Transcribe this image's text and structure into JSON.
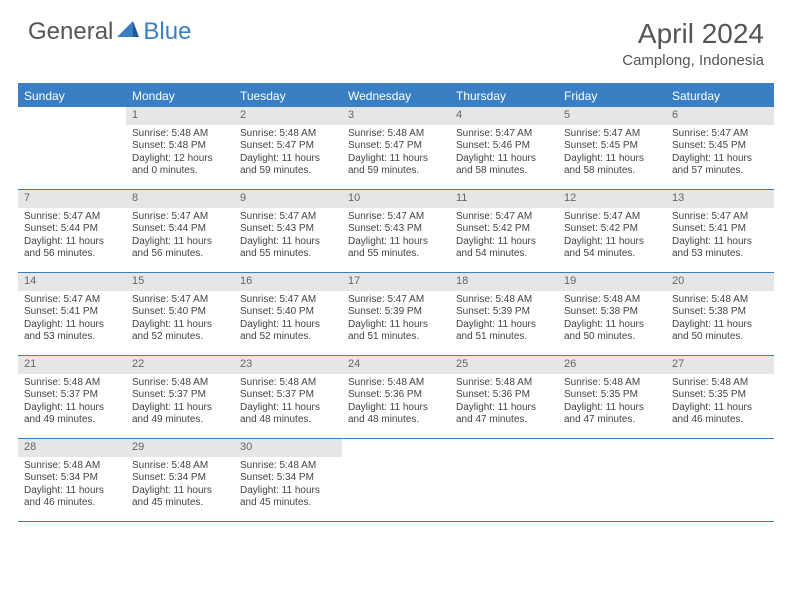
{
  "brand": {
    "general": "General",
    "blue": "Blue"
  },
  "title": "April 2024",
  "location": "Camplong, Indonesia",
  "colors": {
    "header_bg": "#3a7fc4",
    "header_text": "#ffffff",
    "daynum_bg": "#e6e6e6",
    "border": "#3a7fc4",
    "text": "#444444",
    "title_text": "#555555"
  },
  "day_names": [
    "Sunday",
    "Monday",
    "Tuesday",
    "Wednesday",
    "Thursday",
    "Friday",
    "Saturday"
  ],
  "weeks": [
    [
      {
        "day": "",
        "lines": []
      },
      {
        "day": "1",
        "lines": [
          "Sunrise: 5:48 AM",
          "Sunset: 5:48 PM",
          "Daylight: 12 hours and 0 minutes."
        ]
      },
      {
        "day": "2",
        "lines": [
          "Sunrise: 5:48 AM",
          "Sunset: 5:47 PM",
          "Daylight: 11 hours and 59 minutes."
        ]
      },
      {
        "day": "3",
        "lines": [
          "Sunrise: 5:48 AM",
          "Sunset: 5:47 PM",
          "Daylight: 11 hours and 59 minutes."
        ]
      },
      {
        "day": "4",
        "lines": [
          "Sunrise: 5:47 AM",
          "Sunset: 5:46 PM",
          "Daylight: 11 hours and 58 minutes."
        ]
      },
      {
        "day": "5",
        "lines": [
          "Sunrise: 5:47 AM",
          "Sunset: 5:45 PM",
          "Daylight: 11 hours and 58 minutes."
        ]
      },
      {
        "day": "6",
        "lines": [
          "Sunrise: 5:47 AM",
          "Sunset: 5:45 PM",
          "Daylight: 11 hours and 57 minutes."
        ]
      }
    ],
    [
      {
        "day": "7",
        "lines": [
          "Sunrise: 5:47 AM",
          "Sunset: 5:44 PM",
          "Daylight: 11 hours and 56 minutes."
        ]
      },
      {
        "day": "8",
        "lines": [
          "Sunrise: 5:47 AM",
          "Sunset: 5:44 PM",
          "Daylight: 11 hours and 56 minutes."
        ]
      },
      {
        "day": "9",
        "lines": [
          "Sunrise: 5:47 AM",
          "Sunset: 5:43 PM",
          "Daylight: 11 hours and 55 minutes."
        ]
      },
      {
        "day": "10",
        "lines": [
          "Sunrise: 5:47 AM",
          "Sunset: 5:43 PM",
          "Daylight: 11 hours and 55 minutes."
        ]
      },
      {
        "day": "11",
        "lines": [
          "Sunrise: 5:47 AM",
          "Sunset: 5:42 PM",
          "Daylight: 11 hours and 54 minutes."
        ]
      },
      {
        "day": "12",
        "lines": [
          "Sunrise: 5:47 AM",
          "Sunset: 5:42 PM",
          "Daylight: 11 hours and 54 minutes."
        ]
      },
      {
        "day": "13",
        "lines": [
          "Sunrise: 5:47 AM",
          "Sunset: 5:41 PM",
          "Daylight: 11 hours and 53 minutes."
        ]
      }
    ],
    [
      {
        "day": "14",
        "lines": [
          "Sunrise: 5:47 AM",
          "Sunset: 5:41 PM",
          "Daylight: 11 hours and 53 minutes."
        ]
      },
      {
        "day": "15",
        "lines": [
          "Sunrise: 5:47 AM",
          "Sunset: 5:40 PM",
          "Daylight: 11 hours and 52 minutes."
        ]
      },
      {
        "day": "16",
        "lines": [
          "Sunrise: 5:47 AM",
          "Sunset: 5:40 PM",
          "Daylight: 11 hours and 52 minutes."
        ]
      },
      {
        "day": "17",
        "lines": [
          "Sunrise: 5:47 AM",
          "Sunset: 5:39 PM",
          "Daylight: 11 hours and 51 minutes."
        ]
      },
      {
        "day": "18",
        "lines": [
          "Sunrise: 5:48 AM",
          "Sunset: 5:39 PM",
          "Daylight: 11 hours and 51 minutes."
        ]
      },
      {
        "day": "19",
        "lines": [
          "Sunrise: 5:48 AM",
          "Sunset: 5:38 PM",
          "Daylight: 11 hours and 50 minutes."
        ]
      },
      {
        "day": "20",
        "lines": [
          "Sunrise: 5:48 AM",
          "Sunset: 5:38 PM",
          "Daylight: 11 hours and 50 minutes."
        ]
      }
    ],
    [
      {
        "day": "21",
        "lines": [
          "Sunrise: 5:48 AM",
          "Sunset: 5:37 PM",
          "Daylight: 11 hours and 49 minutes."
        ]
      },
      {
        "day": "22",
        "lines": [
          "Sunrise: 5:48 AM",
          "Sunset: 5:37 PM",
          "Daylight: 11 hours and 49 minutes."
        ]
      },
      {
        "day": "23",
        "lines": [
          "Sunrise: 5:48 AM",
          "Sunset: 5:37 PM",
          "Daylight: 11 hours and 48 minutes."
        ]
      },
      {
        "day": "24",
        "lines": [
          "Sunrise: 5:48 AM",
          "Sunset: 5:36 PM",
          "Daylight: 11 hours and 48 minutes."
        ]
      },
      {
        "day": "25",
        "lines": [
          "Sunrise: 5:48 AM",
          "Sunset: 5:36 PM",
          "Daylight: 11 hours and 47 minutes."
        ]
      },
      {
        "day": "26",
        "lines": [
          "Sunrise: 5:48 AM",
          "Sunset: 5:35 PM",
          "Daylight: 11 hours and 47 minutes."
        ]
      },
      {
        "day": "27",
        "lines": [
          "Sunrise: 5:48 AM",
          "Sunset: 5:35 PM",
          "Daylight: 11 hours and 46 minutes."
        ]
      }
    ],
    [
      {
        "day": "28",
        "lines": [
          "Sunrise: 5:48 AM",
          "Sunset: 5:34 PM",
          "Daylight: 11 hours and 46 minutes."
        ]
      },
      {
        "day": "29",
        "lines": [
          "Sunrise: 5:48 AM",
          "Sunset: 5:34 PM",
          "Daylight: 11 hours and 45 minutes."
        ]
      },
      {
        "day": "30",
        "lines": [
          "Sunrise: 5:48 AM",
          "Sunset: 5:34 PM",
          "Daylight: 11 hours and 45 minutes."
        ]
      },
      {
        "day": "",
        "lines": []
      },
      {
        "day": "",
        "lines": []
      },
      {
        "day": "",
        "lines": []
      },
      {
        "day": "",
        "lines": []
      }
    ]
  ]
}
